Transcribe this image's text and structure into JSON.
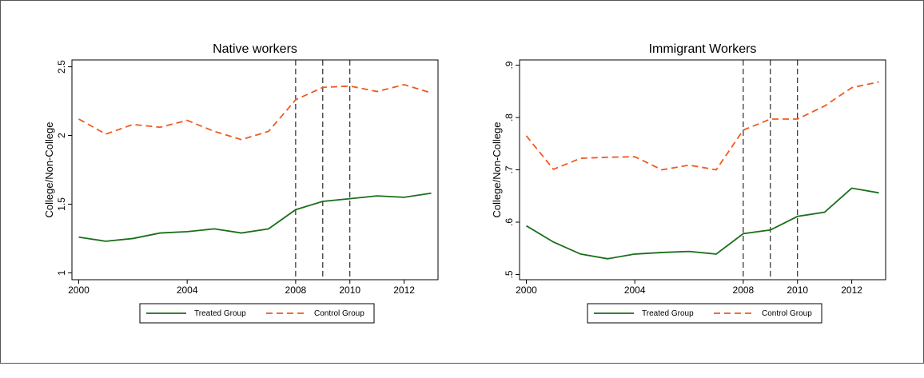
{
  "chart_data": [
    {
      "type": "line",
      "title": "Native workers",
      "y_label": "College/Non-College",
      "x": [
        2000,
        2001,
        2002,
        2003,
        2004,
        2005,
        2006,
        2007,
        2008,
        2009,
        2010,
        2011,
        2012,
        2013
      ],
      "series": [
        {
          "name": "Treated Group",
          "color": "#1b6e1b",
          "dash": false,
          "values": [
            1.26,
            1.23,
            1.25,
            1.29,
            1.3,
            1.32,
            1.29,
            1.32,
            1.46,
            1.52,
            1.54,
            1.56,
            1.55,
            1.58
          ]
        },
        {
          "name": "Control Group",
          "color": "#f05a1e",
          "dash": true,
          "values": [
            2.12,
            2.01,
            2.08,
            2.06,
            2.11,
            2.03,
            1.97,
            2.03,
            2.26,
            2.35,
            2.36,
            2.32,
            2.37,
            2.31
          ]
        }
      ],
      "xlim": [
        1999.75,
        2013.25
      ],
      "xticks": [
        2000,
        2004,
        2008,
        2010,
        2012
      ],
      "ylim": [
        0.95,
        2.55
      ],
      "yticks": [
        1,
        1.5,
        2,
        2.5
      ],
      "vlines": [
        2008,
        2009,
        2010
      ]
    },
    {
      "type": "line",
      "title": "Immigrant Workers",
      "y_label": "College/Non-College",
      "x": [
        2000,
        2001,
        2002,
        2003,
        2004,
        2005,
        2006,
        2007,
        2008,
        2009,
        2010,
        2011,
        2012,
        2013
      ],
      "series": [
        {
          "name": "Treated Group",
          "color": "#1b6e1b",
          "dash": false,
          "values": [
            0.593,
            0.562,
            0.539,
            0.53,
            0.539,
            0.542,
            0.544,
            0.539,
            0.578,
            0.585,
            0.611,
            0.619,
            0.665,
            0.656
          ]
        },
        {
          "name": "Control Group",
          "color": "#f05a1e",
          "dash": true,
          "values": [
            0.765,
            0.701,
            0.722,
            0.724,
            0.725,
            0.7,
            0.709,
            0.7,
            0.776,
            0.797,
            0.797,
            0.822,
            0.857,
            0.868
          ]
        }
      ],
      "xlim": [
        1999.75,
        2013.25
      ],
      "xticks": [
        2000,
        2004,
        2008,
        2010,
        2012
      ],
      "ylim": [
        0.49,
        0.91
      ],
      "yticks": [
        {
          "value": 0.5,
          "label": ".5"
        },
        {
          "value": 0.6,
          "label": ".6"
        },
        {
          "value": 0.7,
          "label": ".7"
        },
        {
          "value": 0.8,
          "label": ".8"
        },
        {
          "value": 0.9,
          "label": ".9"
        }
      ],
      "vlines": [
        2008,
        2009,
        2010
      ]
    }
  ]
}
